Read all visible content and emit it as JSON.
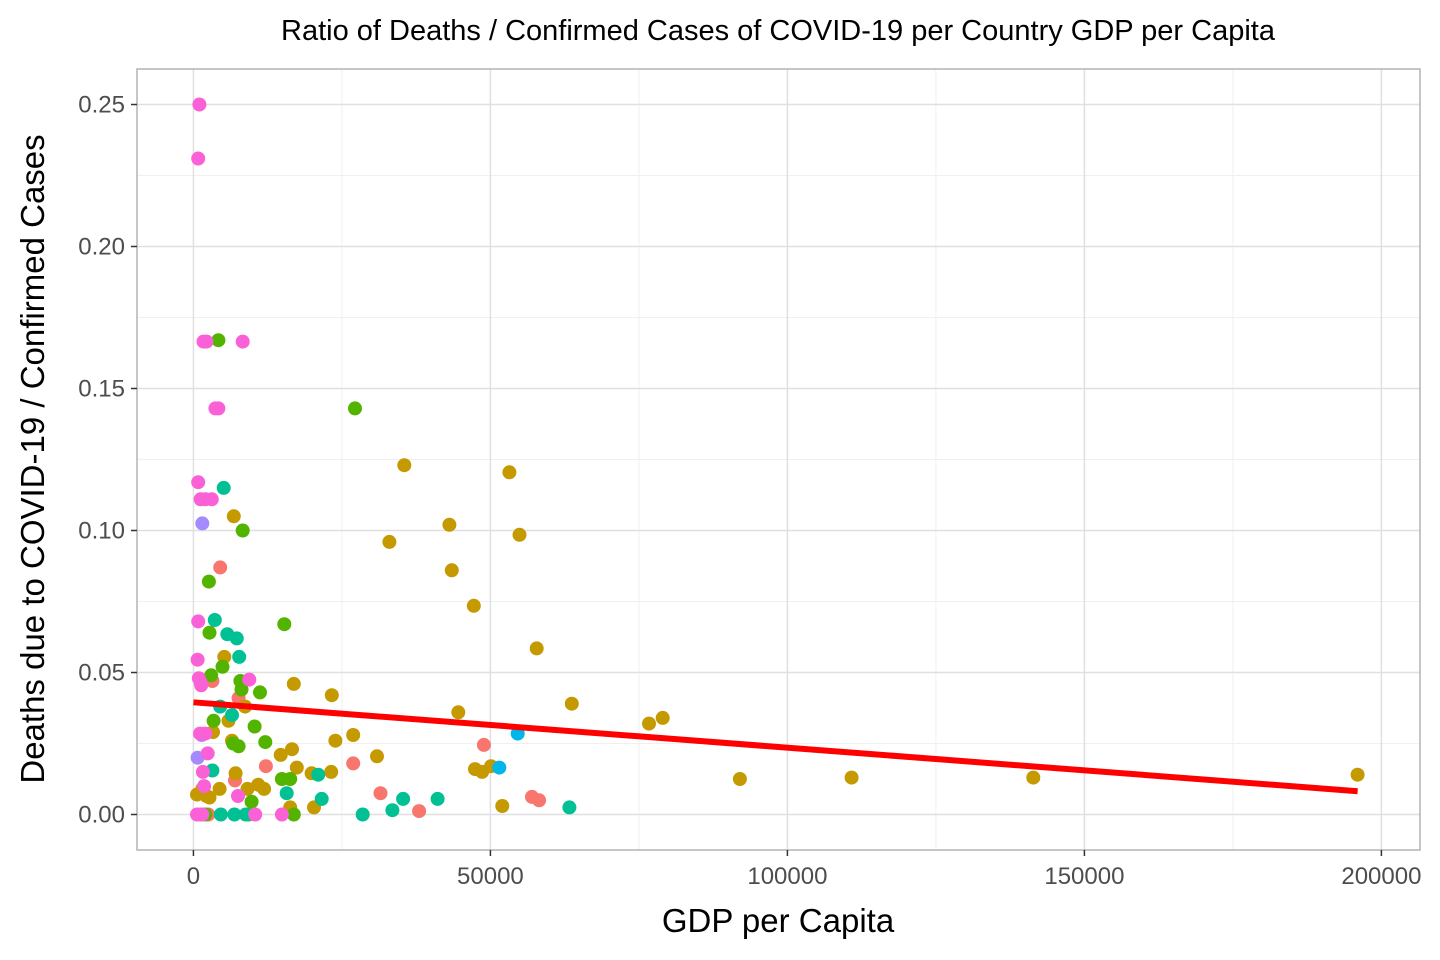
{
  "chart_data": {
    "type": "scatter",
    "title": "Ratio of Deaths / Confirmed Cases of COVID-19 per Country GDP per Capita",
    "xlabel": "GDP per Capita",
    "ylabel": "Deaths due to COVID-19 / Confirmed Cases",
    "xlim": [
      -9500,
      206500
    ],
    "ylim": [
      -0.0125,
      0.2625
    ],
    "x_ticks": [
      0,
      50000,
      100000,
      150000,
      200000
    ],
    "x_tick_labels": [
      "0",
      "50000",
      "100000",
      "150000",
      "200000"
    ],
    "y_ticks": [
      0.0,
      0.05,
      0.1,
      0.15,
      0.2,
      0.25
    ],
    "y_tick_labels": [
      "0.00",
      "0.05",
      "0.10",
      "0.15",
      "0.20",
      "0.25"
    ],
    "grid": true,
    "legend": "none",
    "trend_line": {
      "color": "#ff0000",
      "x": [
        0,
        196000
      ],
      "y": [
        0.0395,
        0.0082
      ]
    },
    "series": [
      {
        "color": "#f8766d",
        "points": [
          [
            4500,
            0.087
          ],
          [
            3200,
            0.047
          ],
          [
            7000,
            0.012
          ],
          [
            7600,
            0.041
          ],
          [
            12200,
            0.017
          ],
          [
            26900,
            0.018
          ],
          [
            31500,
            0.0075
          ],
          [
            38000,
            0.0012
          ],
          [
            48900,
            0.0245
          ],
          [
            57000,
            0.0062
          ],
          [
            58200,
            0.005
          ],
          [
            2500,
            0.0
          ],
          [
            1200,
            0.0
          ]
        ]
      },
      {
        "color": "#c49a00",
        "points": [
          [
            6800,
            0.105
          ],
          [
            35500,
            0.123
          ],
          [
            53200,
            0.1205
          ],
          [
            43100,
            0.102
          ],
          [
            33000,
            0.096
          ],
          [
            54900,
            0.0985
          ],
          [
            43500,
            0.086
          ],
          [
            47200,
            0.0735
          ],
          [
            57800,
            0.0585
          ],
          [
            63700,
            0.039
          ],
          [
            76700,
            0.032
          ],
          [
            79000,
            0.034
          ],
          [
            92000,
            0.0125
          ],
          [
            110800,
            0.013
          ],
          [
            141400,
            0.013
          ],
          [
            196000,
            0.014
          ],
          [
            23300,
            0.042
          ],
          [
            16900,
            0.046
          ],
          [
            26900,
            0.028
          ],
          [
            23900,
            0.026
          ],
          [
            30900,
            0.0205
          ],
          [
            44600,
            0.036
          ],
          [
            47400,
            0.016
          ],
          [
            50100,
            0.017
          ],
          [
            52000,
            0.003
          ],
          [
            48600,
            0.015
          ],
          [
            19900,
            0.0145
          ],
          [
            23200,
            0.015
          ],
          [
            17400,
            0.0165
          ],
          [
            14700,
            0.021
          ],
          [
            16600,
            0.023
          ],
          [
            10900,
            0.0105
          ],
          [
            11900,
            0.009
          ],
          [
            8700,
            0.038
          ],
          [
            5200,
            0.0555
          ],
          [
            5900,
            0.033
          ],
          [
            6500,
            0.026
          ],
          [
            7100,
            0.0145
          ],
          [
            4400,
            0.009
          ],
          [
            3300,
            0.029
          ],
          [
            2200,
            0.0065
          ],
          [
            1500,
            0.009
          ],
          [
            600,
            0.007
          ],
          [
            9100,
            0.009
          ],
          [
            20300,
            0.0025
          ],
          [
            16300,
            0.0025
          ],
          [
            2700,
            0.006
          ]
        ]
      },
      {
        "color": "#53b400",
        "points": [
          [
            27200,
            0.143
          ],
          [
            4200,
            0.167
          ],
          [
            8300,
            0.1
          ],
          [
            2600,
            0.082
          ],
          [
            15300,
            0.067
          ],
          [
            2700,
            0.064
          ],
          [
            3000,
            0.049
          ],
          [
            4900,
            0.052
          ],
          [
            7900,
            0.047
          ],
          [
            11200,
            0.043
          ],
          [
            10300,
            0.031
          ],
          [
            8100,
            0.044
          ],
          [
            3400,
            0.033
          ],
          [
            6700,
            0.025
          ],
          [
            7600,
            0.024
          ],
          [
            12100,
            0.0255
          ],
          [
            14900,
            0.0125
          ],
          [
            16300,
            0.0125
          ],
          [
            9800,
            0.0045
          ],
          [
            9300,
            0.0
          ],
          [
            16900,
            0.0
          ],
          [
            2000,
            0.0
          ]
        ]
      },
      {
        "color": "#00c094",
        "points": [
          [
            5100,
            0.115
          ],
          [
            3600,
            0.0685
          ],
          [
            5700,
            0.0635
          ],
          [
            7300,
            0.062
          ],
          [
            7700,
            0.0555
          ],
          [
            4500,
            0.038
          ],
          [
            6500,
            0.035
          ],
          [
            3200,
            0.0155
          ],
          [
            15700,
            0.0075
          ],
          [
            21000,
            0.014
          ],
          [
            21600,
            0.0055
          ],
          [
            28500,
            0.0
          ],
          [
            33500,
            0.0015
          ],
          [
            35300,
            0.0055
          ],
          [
            41100,
            0.0055
          ],
          [
            63300,
            0.0025
          ],
          [
            6900,
            0.0
          ],
          [
            4600,
            0.0
          ],
          [
            8800,
            0.0
          ]
        ]
      },
      {
        "color": "#00b6eb",
        "points": [
          [
            54600,
            0.0285
          ],
          [
            51500,
            0.0165
          ]
        ]
      },
      {
        "color": "#a58aff",
        "points": [
          [
            1500,
            0.1025
          ],
          [
            700,
            0.02
          ],
          [
            1400,
            0.028
          ]
        ]
      },
      {
        "color": "#fb61d7",
        "points": [
          [
            1000,
            0.25
          ],
          [
            800,
            0.231
          ],
          [
            1700,
            0.1665
          ],
          [
            2200,
            0.1665
          ],
          [
            8300,
            0.1665
          ],
          [
            3700,
            0.143
          ],
          [
            4200,
            0.143
          ],
          [
            800,
            0.117
          ],
          [
            1200,
            0.111
          ],
          [
            2000,
            0.111
          ],
          [
            3100,
            0.111
          ],
          [
            800,
            0.068
          ],
          [
            700,
            0.0545
          ],
          [
            900,
            0.048
          ],
          [
            1200,
            0.0465
          ],
          [
            1300,
            0.0455
          ],
          [
            9400,
            0.0475
          ],
          [
            1100,
            0.0285
          ],
          [
            2000,
            0.0285
          ],
          [
            2400,
            0.0215
          ],
          [
            1600,
            0.015
          ],
          [
            1800,
            0.01
          ],
          [
            7500,
            0.0065
          ],
          [
            14900,
            0.0
          ],
          [
            10400,
            0.0
          ],
          [
            600,
            0.0
          ],
          [
            1500,
            0.0
          ]
        ]
      }
    ]
  }
}
